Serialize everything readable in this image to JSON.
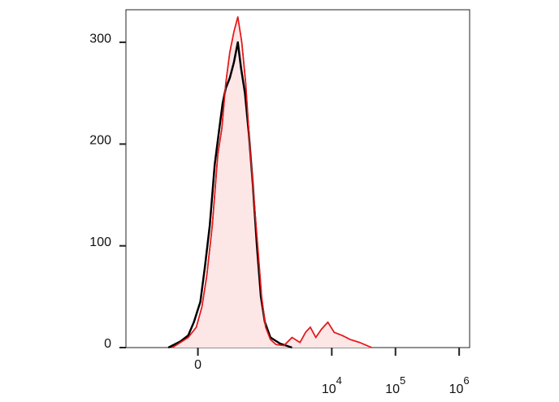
{
  "chart_data": {
    "type": "histogram-overlay",
    "xscale": "asinh",
    "cofactor": 158,
    "xlim": [
      -1060,
      1460000
    ],
    "xticks": [
      0,
      {
        "value": 10000,
        "label": "10",
        "sup": "4"
      },
      {
        "value": 100000,
        "label": "10",
        "sup": "5"
      },
      {
        "value": 1000000,
        "label": "10",
        "sup": "6"
      }
    ],
    "ylim": [
      0,
      332
    ],
    "yticks": [
      0,
      100,
      200,
      300
    ],
    "series": [
      {
        "color": "#e31a1c",
        "fill": "#fde6e6",
        "x": [
          -167,
          -107,
          -56,
          -9,
          23,
          51,
          86,
          124,
          154,
          188,
          225,
          268,
          316,
          370,
          431,
          501,
          583,
          678,
          784,
          908,
          1082,
          1326,
          1770,
          2370,
          3160,
          3870,
          4600,
          5620,
          6870,
          8660,
          10900,
          14550,
          19400,
          27400,
          42200
        ],
        "values": [
          0,
          5,
          10,
          20,
          40,
          70,
          120,
          190,
          215,
          260,
          290,
          310,
          325,
          300,
          260,
          200,
          150,
          100,
          50,
          20,
          8,
          3,
          2,
          10,
          5,
          15,
          20,
          10,
          18,
          25,
          15,
          12,
          8,
          5,
          0
        ]
      },
      {
        "color": "#000000",
        "x": [
          -203,
          -107,
          -56,
          -23,
          14,
          41,
          70,
          102,
          130,
          161,
          188,
          225,
          268,
          316,
          359,
          419,
          487,
          566,
          657,
          762,
          882,
          1082,
          1533,
          2370
        ],
        "values": [
          0,
          6,
          12,
          25,
          45,
          80,
          120,
          180,
          210,
          240,
          255,
          265,
          280,
          300,
          275,
          250,
          210,
          160,
          100,
          50,
          25,
          10,
          4,
          0
        ]
      }
    ]
  }
}
